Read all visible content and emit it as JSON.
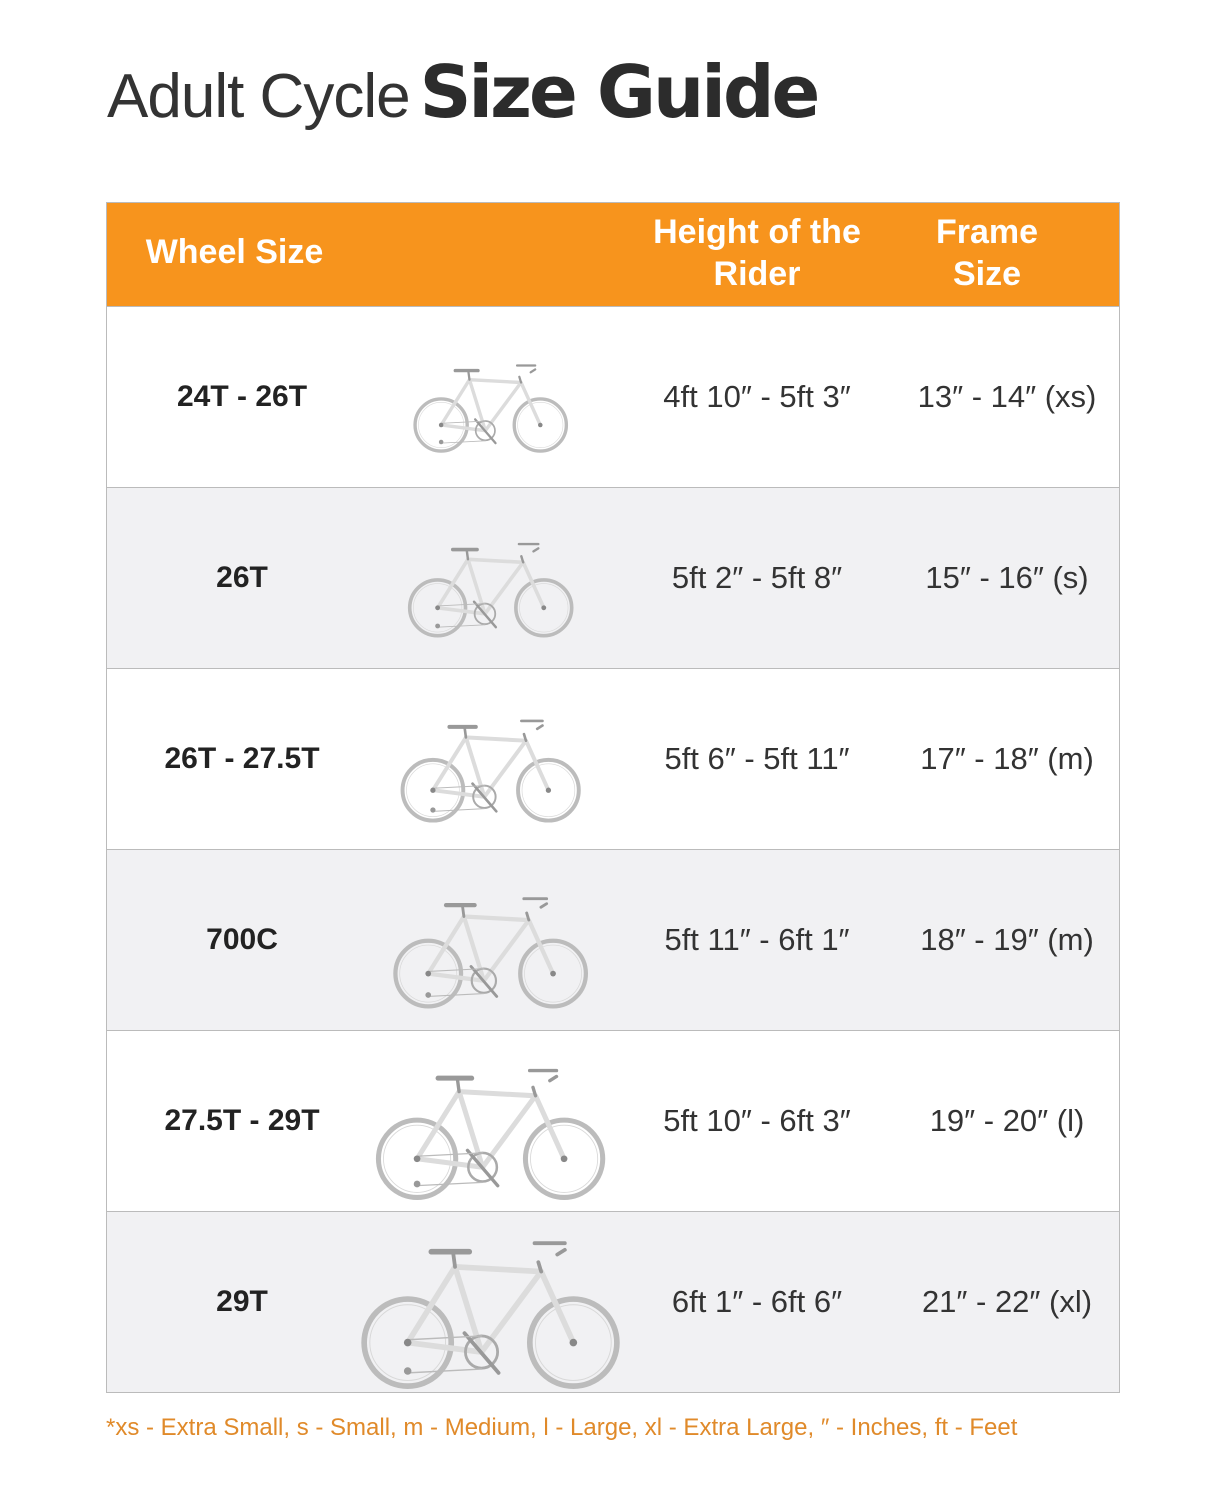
{
  "title": {
    "light": "Adult Cycle",
    "bold": "Size Guide"
  },
  "colors": {
    "header": "#f7941d",
    "footer_text": "#e08a2a",
    "alt_row": "#f1f1f3"
  },
  "table": {
    "headers": {
      "wheel": "Wheel Size",
      "height": "Height of the Rider",
      "frame": "Frame Size"
    },
    "rows": [
      {
        "wheel": "24T - 26T",
        "height": "4ft 10″ - 5ft 3″",
        "frame": "13″ - 14″ (xs)",
        "icon": "bicycle-icon"
      },
      {
        "wheel": "26T",
        "height": "5ft 2″ - 5ft 8″",
        "frame": "15″ - 16″ (s)",
        "icon": "bicycle-icon"
      },
      {
        "wheel": "26T - 27.5T",
        "height": "5ft 6″ - 5ft 11″",
        "frame": "17″ - 18″ (m)",
        "icon": "bicycle-icon"
      },
      {
        "wheel": "700C",
        "height": "5ft 11″ -  6ft 1″",
        "frame": "18″ - 19″ (m)",
        "icon": "bicycle-icon"
      },
      {
        "wheel": "27.5T - 29T",
        "height": "5ft 10″ -  6ft 3″",
        "frame": "19″ - 20″ (l)",
        "icon": "bicycle-icon"
      },
      {
        "wheel": "29T",
        "height": "6ft 1″ -  6ft 6″",
        "frame": "21″ - 22″ (xl)",
        "icon": "bicycle-icon"
      }
    ]
  },
  "footer": "*xs - Extra Small, s - Small, m - Medium, l - Large, xl - Extra Large, ″ - Inches, ft - Feet"
}
